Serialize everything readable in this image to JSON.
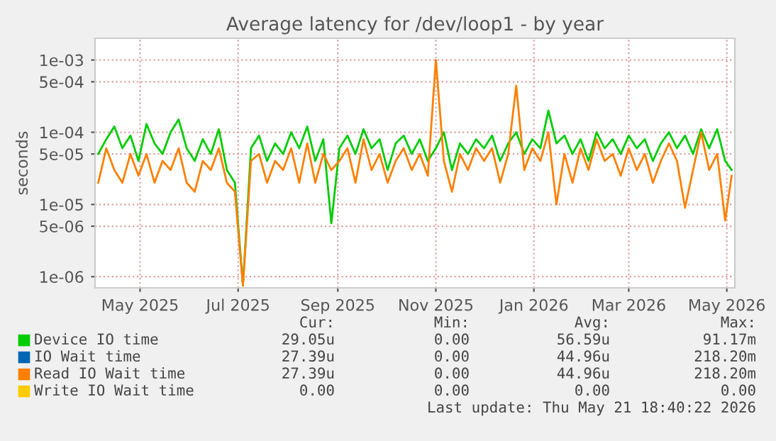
{
  "chart_data": {
    "type": "line",
    "title": "Average latency for /dev/loop1 - by year",
    "ylabel": "seconds",
    "log": "y",
    "grid": true,
    "legend": "bottom",
    "line_style": "solid",
    "marker": "none",
    "x": [
      "2025-04-05",
      "2025-04-10",
      "2025-04-15",
      "2025-04-20",
      "2025-04-25",
      "2025-04-30",
      "2025-05-05",
      "2025-05-10",
      "2025-05-15",
      "2025-05-20",
      "2025-05-25",
      "2025-05-30",
      "2025-06-04",
      "2025-06-09",
      "2025-06-14",
      "2025-06-19",
      "2025-06-24",
      "2025-06-29",
      "2025-07-04",
      "2025-07-09",
      "2025-07-14",
      "2025-07-19",
      "2025-07-24",
      "2025-07-29",
      "2025-08-03",
      "2025-08-08",
      "2025-08-13",
      "2025-08-18",
      "2025-08-23",
      "2025-08-28",
      "2025-09-02",
      "2025-09-07",
      "2025-09-12",
      "2025-09-17",
      "2025-09-22",
      "2025-09-27",
      "2025-10-02",
      "2025-10-07",
      "2025-10-12",
      "2025-10-17",
      "2025-10-22",
      "2025-10-27",
      "2025-11-01",
      "2025-11-06",
      "2025-11-11",
      "2025-11-16",
      "2025-11-21",
      "2025-11-26",
      "2025-12-01",
      "2025-12-06",
      "2025-12-11",
      "2025-12-16",
      "2025-12-21",
      "2025-12-26",
      "2025-12-31",
      "2026-01-05",
      "2026-01-10",
      "2026-01-15",
      "2026-01-20",
      "2026-01-25",
      "2026-01-30",
      "2026-02-04",
      "2026-02-09",
      "2026-02-14",
      "2026-02-19",
      "2026-02-24",
      "2026-03-01",
      "2026-03-06",
      "2026-03-11",
      "2026-03-16",
      "2026-03-21",
      "2026-03-26",
      "2026-03-31",
      "2026-04-05",
      "2026-04-10",
      "2026-04-15",
      "2026-04-20",
      "2026-04-25",
      "2026-04-30",
      "2026-05-04"
    ],
    "series": [
      {
        "name": "Device IO time",
        "color": "#00cc00",
        "values": [
          5e-05,
          8e-05,
          0.00012,
          6e-05,
          9e-05,
          4e-05,
          0.00013,
          7e-05,
          5e-05,
          0.0001,
          0.00015,
          6e-05,
          4e-05,
          8e-05,
          5e-05,
          0.00011,
          3e-05,
          2e-05,
          7.5e-07,
          6e-05,
          9e-05,
          4e-05,
          7e-05,
          5e-05,
          0.0001,
          6e-05,
          0.00012,
          4e-05,
          8e-05,
          5.5e-06,
          6e-05,
          9e-05,
          5e-05,
          0.00011,
          6e-05,
          8e-05,
          3e-05,
          7e-05,
          9e-05,
          5e-05,
          8e-05,
          4e-05,
          6e-05,
          0.0001,
          3e-05,
          7e-05,
          5e-05,
          8e-05,
          6e-05,
          9e-05,
          4e-05,
          7e-05,
          0.0001,
          5e-05,
          8e-05,
          6e-05,
          0.0002,
          7e-05,
          9e-05,
          5e-05,
          8e-05,
          4e-05,
          0.0001,
          6e-05,
          8e-05,
          5e-05,
          9e-05,
          6e-05,
          8e-05,
          4e-05,
          7e-05,
          0.0001,
          6e-05,
          9e-05,
          5e-05,
          0.00011,
          6e-05,
          0.00011,
          4e-05,
          3e-05
        ]
      },
      {
        "name": "IO Wait time",
        "color": "#0066b3",
        "values": [
          null,
          null,
          null,
          null,
          null,
          null,
          null,
          null,
          null,
          null,
          null,
          null,
          null,
          null,
          null,
          null,
          null,
          null,
          null,
          null,
          null,
          null,
          null,
          null,
          null,
          null,
          null,
          null,
          null,
          null,
          null,
          null,
          null,
          null,
          null,
          null,
          null,
          null,
          null,
          null,
          null,
          null,
          null,
          null,
          null,
          null,
          null,
          null,
          null,
          null,
          null,
          null,
          null,
          null,
          null,
          null,
          null,
          null,
          null,
          null,
          null,
          null,
          null,
          null,
          null,
          null,
          null,
          null,
          null,
          null,
          null,
          null,
          null,
          null,
          null,
          null,
          null,
          null,
          null,
          null
        ]
      },
      {
        "name": "Read IO Wait time",
        "color": "#ff8000",
        "values": [
          2e-05,
          6e-05,
          3e-05,
          2e-05,
          5e-05,
          2.5e-05,
          5e-05,
          2e-05,
          4e-05,
          3e-05,
          6e-05,
          2e-05,
          1.5e-05,
          4e-05,
          3e-05,
          6e-05,
          2e-05,
          1.5e-05,
          7.5e-07,
          4e-05,
          5e-05,
          2e-05,
          4e-05,
          3e-05,
          6e-05,
          2e-05,
          7e-05,
          2e-05,
          5e-05,
          3e-05,
          4e-05,
          6e-05,
          2e-05,
          8e-05,
          3e-05,
          5e-05,
          2e-05,
          4e-05,
          6e-05,
          3e-05,
          5e-05,
          2.5e-05,
          0.001,
          4e-05,
          1.5e-05,
          5e-05,
          3e-05,
          6e-05,
          4e-05,
          6e-05,
          2e-05,
          5e-05,
          0.00044,
          3e-05,
          6e-05,
          4e-05,
          0.0001,
          1e-05,
          5e-05,
          2e-05,
          6e-05,
          3e-05,
          8e-05,
          4e-05,
          5e-05,
          2.5e-05,
          6e-05,
          3e-05,
          5e-05,
          2e-05,
          4e-05,
          7e-05,
          4e-05,
          9e-06,
          3e-05,
          0.0001,
          3e-05,
          5e-05,
          6e-06,
          2.5e-05
        ]
      },
      {
        "name": "Write IO Wait time",
        "color": "#ffcc00",
        "values": [
          null,
          null,
          null,
          null,
          null,
          null,
          null,
          null,
          null,
          null,
          null,
          null,
          null,
          null,
          null,
          null,
          null,
          null,
          null,
          null,
          null,
          null,
          null,
          null,
          null,
          null,
          null,
          null,
          null,
          null,
          null,
          null,
          null,
          null,
          null,
          null,
          null,
          null,
          null,
          null,
          null,
          null,
          null,
          null,
          null,
          null,
          null,
          null,
          null,
          null,
          null,
          null,
          null,
          null,
          null,
          null,
          null,
          null,
          null,
          null,
          null,
          null,
          null,
          null,
          null,
          null,
          null,
          null,
          null,
          null,
          null,
          null,
          null,
          null,
          null,
          null,
          null,
          null,
          null,
          null
        ]
      }
    ],
    "xlim": [
      "2025-04-03",
      "2026-05-06"
    ],
    "xticks": [
      {
        "value": "2025-05-01",
        "label": "May 2025"
      },
      {
        "value": "2025-07-01",
        "label": "Jul 2025"
      },
      {
        "value": "2025-09-01",
        "label": "Sep 2025"
      },
      {
        "value": "2025-11-01",
        "label": "Nov 2025"
      },
      {
        "value": "2026-01-01",
        "label": "Jan 2026"
      },
      {
        "value": "2026-03-01",
        "label": "Mar 2026"
      },
      {
        "value": "2026-05-01",
        "label": "May 2026"
      }
    ],
    "ylim": [
      7e-07,
      0.002
    ],
    "yticks": [
      {
        "value": 1e-06,
        "label": "1e-06"
      },
      {
        "value": 5e-06,
        "label": "5e-06"
      },
      {
        "value": 1e-05,
        "label": "1e-05"
      },
      {
        "value": 5e-05,
        "label": "5e-05"
      },
      {
        "value": 0.0001,
        "label": "1e-04"
      },
      {
        "value": 0.0005,
        "label": "5e-04"
      },
      {
        "value": 0.001,
        "label": "1e-03"
      }
    ],
    "annotations": [
      "Cur:",
      "Min:",
      "Avg:",
      "Max:",
      "29.05u",
      "0.00",
      "56.59u",
      "91.17m",
      "27.39u",
      "0.00",
      "44.96u",
      "218.20m",
      "27.39u",
      "0.00",
      "44.96u",
      "218.20m",
      "0.00",
      "0.00",
      "0.00",
      "0.00",
      "Last update: Thu May 21 18:40:22 2026"
    ]
  }
}
